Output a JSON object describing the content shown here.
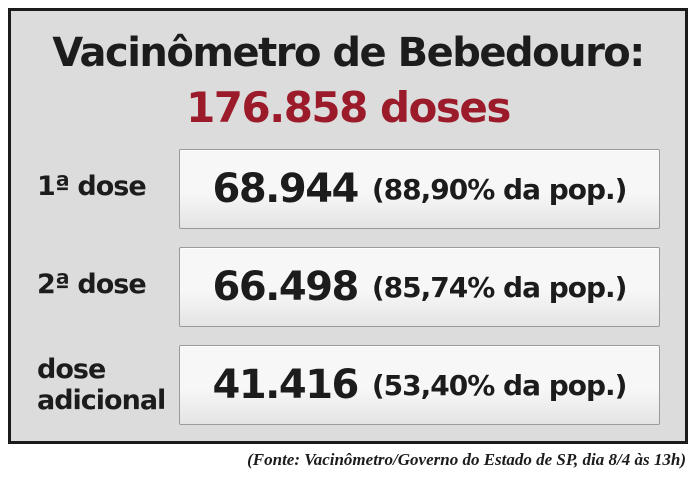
{
  "title": "Vacinômetro de Bebedouro:",
  "total": "176.858 doses",
  "rows": [
    {
      "label_line1": "1ª dose",
      "label_line2": "",
      "number": "68.944",
      "percent": "(88,90% da pop.)"
    },
    {
      "label_line1": "2ª dose",
      "label_line2": "",
      "number": "66.498",
      "percent": "(85,74% da pop.)"
    },
    {
      "label_line1": "dose",
      "label_line2": "adicional",
      "number": "41.416",
      "percent": "(53,40% da pop.)"
    }
  ],
  "source": "(Fonte: Vacinômetro/Governo do Estado de SP, dia 8/4 às 13h)",
  "colors": {
    "total": "#9b1b2a",
    "panel_background": "#dcdcdc",
    "border": "#1b1b1b"
  }
}
